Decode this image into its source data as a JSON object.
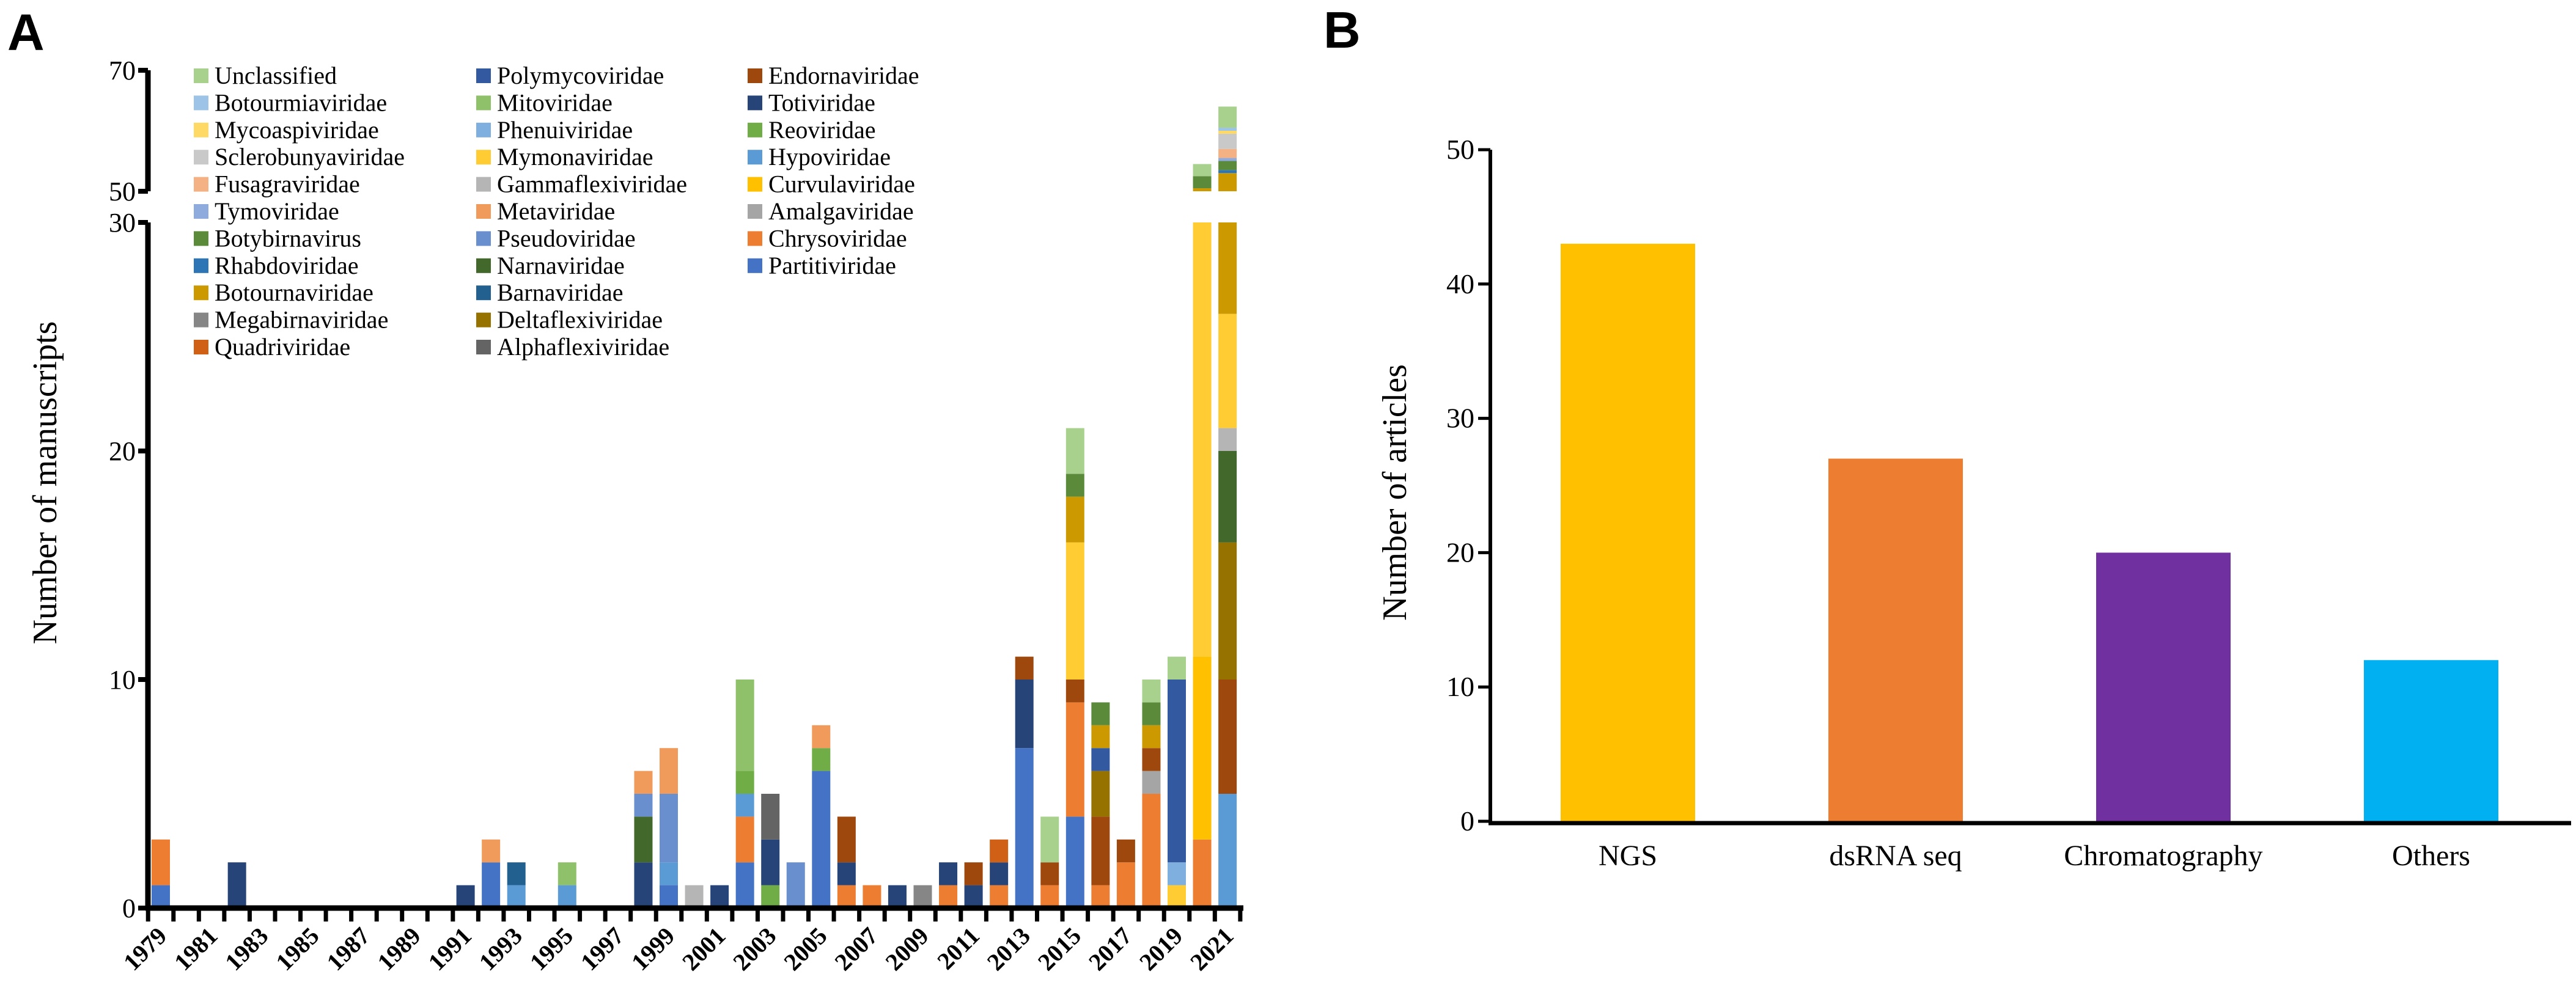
{
  "panels": {
    "a_label": "A",
    "b_label": "B"
  },
  "chart_data": [
    {
      "type": "bar",
      "stacked": true,
      "ylabel": "Number of manuscripts",
      "xlabel": "",
      "y_axis_break": [
        30,
        50
      ],
      "ylim_lower": [
        0,
        30
      ],
      "ylim_upper": [
        50,
        70
      ],
      "yticks_lower": [
        "0",
        "10",
        "20",
        "30"
      ],
      "yticks_upper": [
        "50",
        "70"
      ],
      "xtick_labels": [
        "1979",
        "1981",
        "1983",
        "1985",
        "1987",
        "1989",
        "1991",
        "1993",
        "1995",
        "1997",
        "1999",
        "2001",
        "2003",
        "2005",
        "2007",
        "2009",
        "2011",
        "2013",
        "2015",
        "2017",
        "2019",
        "2021"
      ],
      "legend_placement": "top-left",
      "legend": [
        {
          "name": "Unclassified",
          "color": "#a9d18e"
        },
        {
          "name": "Botourmiaviridae",
          "color": "#9dc3e6"
        },
        {
          "name": "Mycoaspiviridae",
          "color": "#ffd966"
        },
        {
          "name": "Sclerobunyaviridae",
          "color": "#c9c9c9"
        },
        {
          "name": "Fusagraviridae",
          "color": "#f4b183"
        },
        {
          "name": "Tymoviridae",
          "color": "#8faadc"
        },
        {
          "name": "Botybirnavirus",
          "color": "#5b8b3a"
        },
        {
          "name": "Rhabdoviridae",
          "color": "#2e75b6"
        },
        {
          "name": "Botournaviridae",
          "color": "#cc9900"
        },
        {
          "name": "Megabirnaviridae",
          "color": "#868686"
        },
        {
          "name": "Quadriviridae",
          "color": "#d06015"
        },
        {
          "name": "Polymycoviridae",
          "color": "#335aa0"
        },
        {
          "name": "Mitoviridae",
          "color": "#8fc16a"
        },
        {
          "name": "Phenuiviridae",
          "color": "#7fafdf"
        },
        {
          "name": "Mymonaviridae",
          "color": "#ffcc33"
        },
        {
          "name": "Gammaflexiviridae",
          "color": "#b5b5b5"
        },
        {
          "name": "Metaviridae",
          "color": "#f09a5c"
        },
        {
          "name": "Pseudoviridae",
          "color": "#6a8fcf"
        },
        {
          "name": "Narnaviridae",
          "color": "#43682b"
        },
        {
          "name": "Barnaviridae",
          "color": "#22608f"
        },
        {
          "name": "Deltaflexiviridae",
          "color": "#967200"
        },
        {
          "name": "Alphaflexiviridae",
          "color": "#646464"
        },
        {
          "name": "Endornaviridae",
          "color": "#9e480e"
        },
        {
          "name": "Totiviridae",
          "color": "#264478"
        },
        {
          "name": "Reoviridae",
          "color": "#70ad47"
        },
        {
          "name": "Hypoviridae",
          "color": "#5b9bd5"
        },
        {
          "name": "Curvulaviridae",
          "color": "#ffc000"
        },
        {
          "name": "Amalgaviridae",
          "color": "#a5a5a5"
        },
        {
          "name": "Chrysoviridae",
          "color": "#ed7d31"
        },
        {
          "name": "Partitiviridae",
          "color": "#4472c4"
        }
      ],
      "stacks": [
        {
          "year": 1979,
          "segments": [
            [
              "Partitiviridae",
              1
            ],
            [
              "Chrysoviridae",
              2
            ]
          ]
        },
        {
          "year": 1980,
          "segments": []
        },
        {
          "year": 1981,
          "segments": []
        },
        {
          "year": 1982,
          "segments": [
            [
              "Totiviridae",
              2
            ]
          ]
        },
        {
          "year": 1983,
          "segments": []
        },
        {
          "year": 1984,
          "segments": []
        },
        {
          "year": 1985,
          "segments": []
        },
        {
          "year": 1986,
          "segments": []
        },
        {
          "year": 1987,
          "segments": []
        },
        {
          "year": 1988,
          "segments": []
        },
        {
          "year": 1989,
          "segments": []
        },
        {
          "year": 1990,
          "segments": []
        },
        {
          "year": 1991,
          "segments": [
            [
              "Totiviridae",
              1
            ]
          ]
        },
        {
          "year": 1992,
          "segments": [
            [
              "Partitiviridae",
              2
            ],
            [
              "Metaviridae",
              1
            ]
          ]
        },
        {
          "year": 1993,
          "segments": [
            [
              "Hypoviridae",
              1
            ],
            [
              "Barnaviridae",
              1
            ]
          ]
        },
        {
          "year": 1994,
          "segments": []
        },
        {
          "year": 1995,
          "segments": [
            [
              "Hypoviridae",
              1
            ],
            [
              "Mitoviridae",
              1
            ]
          ]
        },
        {
          "year": 1996,
          "segments": []
        },
        {
          "year": 1997,
          "segments": []
        },
        {
          "year": 1998,
          "segments": [
            [
              "Totiviridae",
              2
            ],
            [
              "Narnaviridae",
              2
            ],
            [
              "Pseudoviridae",
              1
            ],
            [
              "Metaviridae",
              1
            ]
          ]
        },
        {
          "year": 1999,
          "segments": [
            [
              "Partitiviridae",
              1
            ],
            [
              "Hypoviridae",
              1
            ],
            [
              "Pseudoviridae",
              3
            ],
            [
              "Metaviridae",
              2
            ]
          ]
        },
        {
          "year": 2000,
          "segments": [
            [
              "Gammaflexiviridae",
              1
            ]
          ]
        },
        {
          "year": 2001,
          "segments": [
            [
              "Totiviridae",
              1
            ]
          ]
        },
        {
          "year": 2002,
          "segments": [
            [
              "Partitiviridae",
              2
            ],
            [
              "Chrysoviridae",
              2
            ],
            [
              "Hypoviridae",
              1
            ],
            [
              "Reoviridae",
              1
            ],
            [
              "Mitoviridae",
              4
            ]
          ]
        },
        {
          "year": 2003,
          "segments": [
            [
              "Reoviridae",
              1
            ],
            [
              "Totiviridae",
              2
            ],
            [
              "Alphaflexiviridae",
              2
            ]
          ]
        },
        {
          "year": 2004,
          "segments": [
            [
              "Pseudoviridae",
              2
            ]
          ]
        },
        {
          "year": 2005,
          "segments": [
            [
              "Partitiviridae",
              6
            ],
            [
              "Reoviridae",
              1
            ],
            [
              "Metaviridae",
              1
            ]
          ]
        },
        {
          "year": 2006,
          "segments": [
            [
              "Chrysoviridae",
              1
            ],
            [
              "Totiviridae",
              1
            ],
            [
              "Endornaviridae",
              2
            ]
          ]
        },
        {
          "year": 2007,
          "segments": [
            [
              "Chrysoviridae",
              1
            ]
          ]
        },
        {
          "year": 2008,
          "segments": [
            [
              "Totiviridae",
              1
            ]
          ]
        },
        {
          "year": 2009,
          "segments": [
            [
              "Megabirnaviridae",
              1
            ]
          ]
        },
        {
          "year": 2010,
          "segments": [
            [
              "Chrysoviridae",
              1
            ],
            [
              "Totiviridae",
              1
            ]
          ]
        },
        {
          "year": 2011,
          "segments": [
            [
              "Totiviridae",
              1
            ],
            [
              "Endornaviridae",
              1
            ]
          ]
        },
        {
          "year": 2012,
          "segments": [
            [
              "Chrysoviridae",
              1
            ],
            [
              "Totiviridae",
              1
            ],
            [
              "Quadriviridae",
              1
            ]
          ]
        },
        {
          "year": 2013,
          "segments": [
            [
              "Partitiviridae",
              7
            ],
            [
              "Totiviridae",
              3
            ],
            [
              "Endornaviridae",
              1
            ]
          ]
        },
        {
          "year": 2014,
          "segments": [
            [
              "Chrysoviridae",
              1
            ],
            [
              "Endornaviridae",
              1
            ],
            [
              "Unclassified",
              2
            ]
          ]
        },
        {
          "year": 2015,
          "segments": [
            [
              "Partitiviridae",
              4
            ],
            [
              "Chrysoviridae",
              5
            ],
            [
              "Endornaviridae",
              1
            ],
            [
              "Mymonaviridae",
              6
            ],
            [
              "Botournaviridae",
              2
            ],
            [
              "Botybirnavirus",
              1
            ],
            [
              "Unclassified",
              2
            ]
          ]
        },
        {
          "year": 2016,
          "segments": [
            [
              "Chrysoviridae",
              1
            ],
            [
              "Endornaviridae",
              3
            ],
            [
              "Deltaflexiviridae",
              2
            ],
            [
              "Polymycoviridae",
              1
            ],
            [
              "Botournaviridae",
              1
            ],
            [
              "Botybirnavirus",
              1
            ]
          ]
        },
        {
          "year": 2017,
          "segments": [
            [
              "Chrysoviridae",
              2
            ],
            [
              "Endornaviridae",
              1
            ]
          ]
        },
        {
          "year": 2018,
          "segments": [
            [
              "Chrysoviridae",
              5
            ],
            [
              "Amalgaviridae",
              1
            ],
            [
              "Endornaviridae",
              1
            ],
            [
              "Botournaviridae",
              1
            ],
            [
              "Botybirnavirus",
              1
            ],
            [
              "Unclassified",
              1
            ]
          ]
        },
        {
          "year": 2019,
          "segments": [
            [
              "Mymonaviridae",
              1
            ],
            [
              "Phenuiviridae",
              1
            ],
            [
              "Polymycoviridae",
              8
            ],
            [
              "Unclassified",
              1
            ]
          ]
        },
        {
          "year": 2020,
          "segments": [
            [
              "Chrysoviridae",
              3
            ],
            [
              "Curvulaviridae",
              8
            ],
            [
              "Mymonaviridae",
              38.5
            ],
            [
              "Botournaviridae",
              1
            ],
            [
              "Botybirnavirus",
              2
            ],
            [
              "Unclassified",
              2
            ]
          ]
        },
        {
          "year": 2021,
          "segments": [
            [
              "Hypoviridae",
              5
            ],
            [
              "Endornaviridae",
              5
            ],
            [
              "Deltaflexiviridae",
              6
            ],
            [
              "Narnaviridae",
              4
            ],
            [
              "Gammaflexiviridae",
              1
            ],
            [
              "Mymonaviridae",
              5
            ],
            [
              "Botournaviridae",
              27
            ],
            [
              "Rhabdoviridae",
              0.5
            ],
            [
              "Botybirnavirus",
              1.5
            ],
            [
              "Tymoviridae",
              0.5
            ],
            [
              "Fusagraviridae",
              1.5
            ],
            [
              "Sclerobunyaviridae",
              2.5
            ],
            [
              "Mycoaspiviridae",
              0.5
            ],
            [
              "Botourmiaviridae",
              0.5
            ],
            [
              "Unclassified",
              3.5
            ]
          ]
        }
      ]
    },
    {
      "type": "bar",
      "ylabel": "Number of articles",
      "xlabel": "",
      "ylim": [
        0,
        50
      ],
      "yticks": [
        "0",
        "10",
        "20",
        "30",
        "40",
        "50"
      ],
      "categories": [
        "NGS",
        "dsRNA seq",
        "Chromatography",
        "Others"
      ],
      "values": [
        43,
        27,
        20,
        12
      ],
      "colors": [
        "#ffc000",
        "#ed7d31",
        "#7030a0",
        "#00b0f0"
      ]
    }
  ]
}
